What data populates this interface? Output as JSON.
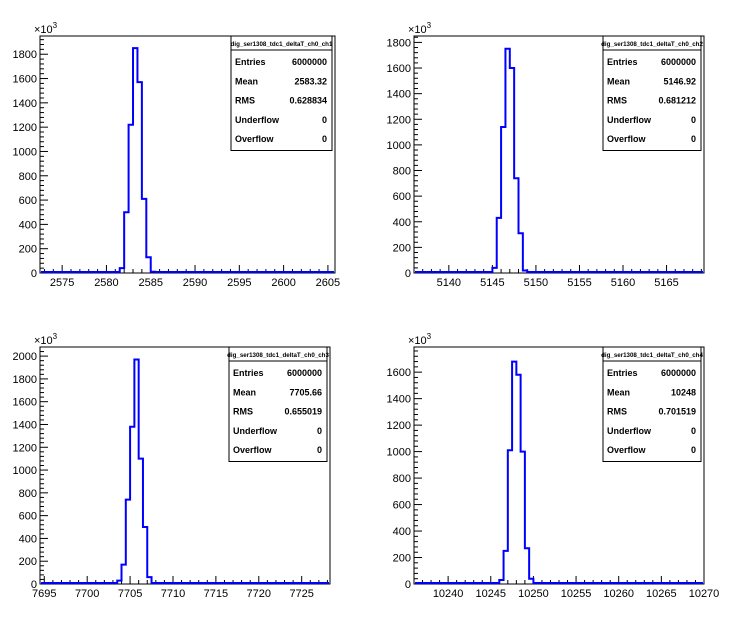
{
  "colors": {
    "histogram": "#0000ff",
    "axis": "#000000",
    "background": "#ffffff"
  },
  "chart_data": [
    {
      "type": "bar",
      "title": "dig_ser1308_tdc1_deltaT_ch0_ch1",
      "exponent_label": "×10",
      "exponent_power": "3",
      "xlim": [
        2572.5,
        2605.8
      ],
      "ylim": [
        0,
        1950
      ],
      "x_ticks": [
        2575,
        2580,
        2585,
        2590,
        2595,
        2600,
        2605
      ],
      "y_ticks": [
        0,
        200,
        400,
        600,
        800,
        1000,
        1200,
        1400,
        1600,
        1800
      ],
      "bin_width": 0.5,
      "bins_x": [
        2581.5,
        2582.0,
        2582.5,
        2583.0,
        2583.5,
        2584.0,
        2584.5,
        2585.0
      ],
      "values": [
        40,
        500,
        1220,
        1850,
        1570,
        610,
        130,
        10
      ],
      "stats": [
        {
          "label": "Entries",
          "value": "6000000"
        },
        {
          "label": "Mean",
          "value": "2583.32"
        },
        {
          "label": "RMS",
          "value": "0.628834"
        },
        {
          "label": "Underflow",
          "value": "0"
        },
        {
          "label": "Overflow",
          "value": "0"
        }
      ]
    },
    {
      "type": "bar",
      "title": "dig_ser1308_tdc1_deltaT_ch0_ch2",
      "exponent_label": "×10",
      "exponent_power": "3",
      "xlim": [
        5136,
        5169.3
      ],
      "ylim": [
        0,
        1850
      ],
      "x_ticks": [
        5140,
        5145,
        5150,
        5155,
        5160,
        5165
      ],
      "y_ticks": [
        0,
        200,
        400,
        600,
        800,
        1000,
        1200,
        1400,
        1600,
        1800
      ],
      "bin_width": 0.5,
      "bins_x": [
        5145.0,
        5145.5,
        5146.0,
        5146.5,
        5147.0,
        5147.5,
        5148.0,
        5148.5
      ],
      "values": [
        40,
        430,
        1140,
        1750,
        1600,
        740,
        310,
        20
      ],
      "stats": [
        {
          "label": "Entries",
          "value": "6000000"
        },
        {
          "label": "Mean",
          "value": "5146.92"
        },
        {
          "label": "RMS",
          "value": "0.681212"
        },
        {
          "label": "Underflow",
          "value": "0"
        },
        {
          "label": "Overflow",
          "value": "0"
        }
      ]
    },
    {
      "type": "bar",
      "title": "dig_ser1308_tdc1_deltaT_ch0_ch3",
      "exponent_label": "×10",
      "exponent_power": "3",
      "xlim": [
        7694.5,
        7728.3
      ],
      "ylim": [
        0,
        2080
      ],
      "x_ticks": [
        7695,
        7700,
        7705,
        7710,
        7715,
        7720,
        7725
      ],
      "y_ticks": [
        0,
        200,
        400,
        600,
        800,
        1000,
        1200,
        1400,
        1600,
        1800,
        2000
      ],
      "bin_width": 0.5,
      "bins_x": [
        7703.5,
        7704.0,
        7704.5,
        7705.0,
        7705.5,
        7706.0,
        7706.5,
        7707.0
      ],
      "values": [
        30,
        170,
        740,
        1380,
        1970,
        1100,
        500,
        60
      ],
      "stats": [
        {
          "label": "Entries",
          "value": "6000000"
        },
        {
          "label": "Mean",
          "value": "7705.66"
        },
        {
          "label": "RMS",
          "value": "0.655019"
        },
        {
          "label": "Underflow",
          "value": "0"
        },
        {
          "label": "Overflow",
          "value": "0"
        }
      ]
    },
    {
      "type": "bar",
      "title": "dig_ser1308_tdc1_deltaT_ch0_ch4",
      "exponent_label": "×10",
      "exponent_power": "3",
      "xlim": [
        10236,
        10270
      ],
      "ylim": [
        0,
        1790
      ],
      "x_ticks": [
        10240,
        10245,
        10250,
        10255,
        10260,
        10265,
        10270
      ],
      "y_ticks": [
        0,
        200,
        400,
        600,
        800,
        1000,
        1200,
        1400,
        1600
      ],
      "bin_width": 0.5,
      "bins_x": [
        10246.0,
        10246.5,
        10247.0,
        10247.5,
        10248.0,
        10248.5,
        10249.0,
        10249.5
      ],
      "values": [
        30,
        250,
        1010,
        1680,
        1580,
        1000,
        270,
        40
      ],
      "stats": [
        {
          "label": "Entries",
          "value": "6000000"
        },
        {
          "label": "Mean",
          "value": "10248"
        },
        {
          "label": "RMS",
          "value": "0.701519"
        },
        {
          "label": "Underflow",
          "value": "0"
        },
        {
          "label": "Overflow",
          "value": "0"
        }
      ]
    }
  ]
}
